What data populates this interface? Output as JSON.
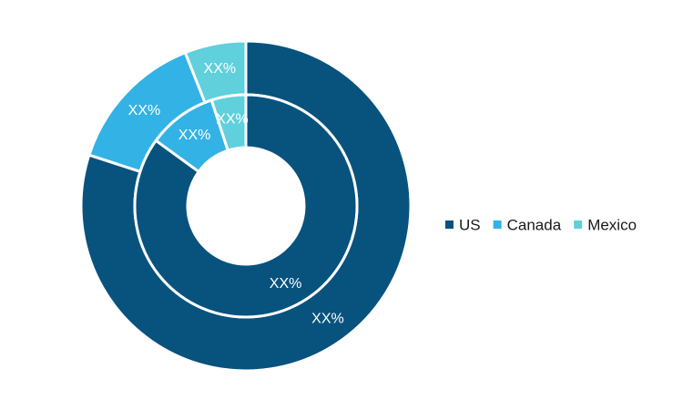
{
  "chart_data": {
    "type": "pie",
    "subtype": "nested-donut",
    "categories": [
      "US",
      "Canada",
      "Mexico"
    ],
    "colors": [
      "#08527e",
      "#33b2e5",
      "#5fd0dc"
    ],
    "legend_position": "right",
    "rings": [
      {
        "ring": "outer",
        "values": [
          80,
          14,
          6
        ],
        "labels": [
          "XX%",
          "XX%",
          "XX%"
        ]
      },
      {
        "ring": "inner",
        "values": [
          85,
          10,
          5
        ],
        "labels": [
          "XX%",
          "XX%",
          "XX%"
        ]
      }
    ]
  }
}
